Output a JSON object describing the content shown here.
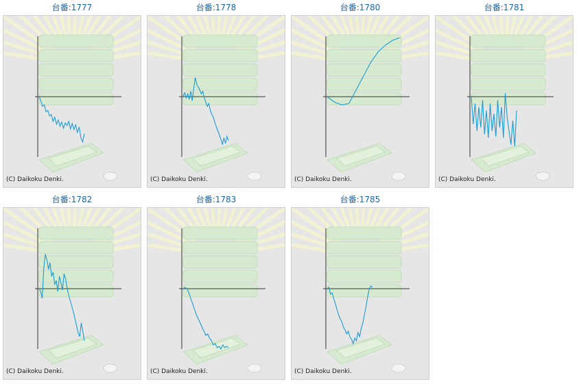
{
  "copyright": "(C) Daikoku Denki.",
  "title_prefix": "台番:",
  "colors": {
    "line": "#1a9bd6",
    "title": "#1f66a8",
    "axis": "#333333"
  },
  "chart_data": [
    {
      "type": "line",
      "title": "台番:1777",
      "unit": "1777",
      "values": [
        0,
        -6,
        -14,
        -12,
        -22,
        -20,
        -28,
        -26,
        -36,
        -30,
        -40,
        -34,
        -43,
        -37,
        -46,
        -38,
        -42,
        -36,
        -47,
        -39,
        -48,
        -41,
        -52,
        -44,
        -60,
        -66,
        -54
      ]
    },
    {
      "type": "line",
      "title": "台番:1778",
      "unit": "1778",
      "values": [
        0,
        6,
        -2,
        4,
        -4,
        8,
        -6,
        12,
        28,
        18,
        14,
        10,
        4,
        8,
        -2,
        -8,
        -14,
        -10,
        -20,
        -26,
        -30,
        -38,
        -44,
        -50,
        -56,
        -62,
        -70,
        -60,
        -68,
        -58,
        -64
      ]
    },
    {
      "type": "line",
      "title": "台番:1780",
      "unit": "1780",
      "values": [
        0,
        -8,
        -12,
        -10,
        10,
        30,
        50,
        65,
        75,
        82,
        86
      ]
    },
    {
      "type": "line",
      "title": "台番:1781",
      "unit": "1781",
      "values": [
        0,
        -40,
        -10,
        -50,
        -15,
        -45,
        -5,
        -55,
        -20,
        -60,
        -10,
        -50,
        -25,
        -58,
        -5,
        -45,
        -15,
        -60,
        5,
        -30,
        -50,
        -70,
        -35,
        -72,
        -20
      ]
    },
    {
      "type": "line",
      "title": "台番:1782",
      "unit": "1782",
      "values": [
        0,
        -4,
        -14,
        30,
        50,
        42,
        28,
        38,
        18,
        24,
        6,
        12,
        -4,
        18,
        8,
        -2,
        22,
        14,
        0,
        -10,
        -18,
        -26,
        -34,
        -44,
        -54,
        -64,
        -70,
        -50,
        -62,
        -76
      ]
    },
    {
      "type": "line",
      "title": "台番:1783",
      "unit": "1783",
      "values": [
        0,
        2,
        0,
        -6,
        -14,
        -22,
        -30,
        -38,
        -44,
        -50,
        -56,
        -62,
        -68,
        -66,
        -72,
        -76,
        -82,
        -80,
        -86,
        -84,
        -88,
        -82,
        -86,
        -84,
        -86
      ]
    },
    {
      "type": "line",
      "title": "台番:1785",
      "unit": "1785",
      "values": [
        0,
        2,
        -8,
        -6,
        -14,
        -22,
        -30,
        -38,
        -44,
        -48,
        -56,
        -60,
        -66,
        -62,
        -70,
        -74,
        -80,
        -72,
        -76,
        -64,
        -70,
        -58,
        -50,
        -38,
        -26,
        -12,
        0,
        4,
        2
      ]
    }
  ]
}
